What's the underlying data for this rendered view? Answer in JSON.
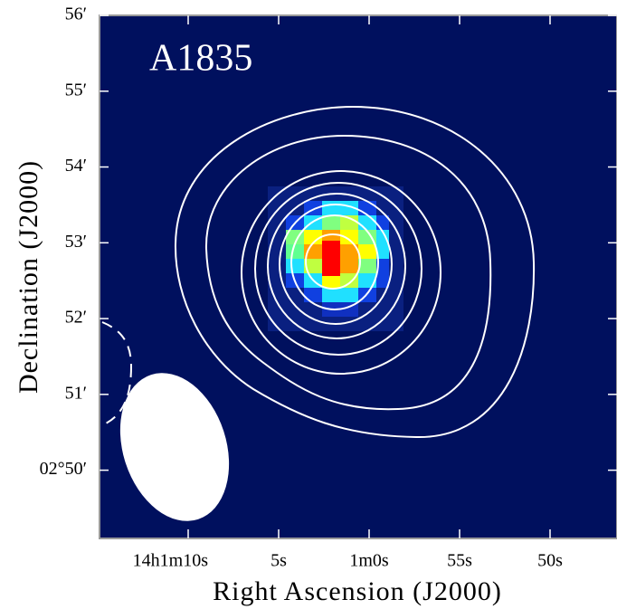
{
  "chart_data": {
    "type": "image",
    "title": "A1835",
    "x_label": "Right Ascension (J2000)",
    "y_label": "Declination (J2000)",
    "xlim": [
      14.9,
      -13.7
    ],
    "ylim": [
      49.1,
      56
    ],
    "xticks": [
      {
        "value": 10,
        "label": "14h1m10s"
      },
      {
        "value": 5,
        "label": "5s"
      },
      {
        "value": 0,
        "label": "1m0s"
      },
      {
        "value": -5,
        "label": "55s"
      },
      {
        "value": -10,
        "label": "50s"
      }
    ],
    "yticks": [
      {
        "value": 56,
        "label": "56′"
      },
      {
        "value": 55,
        "label": "55′"
      },
      {
        "value": 54,
        "label": "54′"
      },
      {
        "value": 53,
        "label": "53′"
      },
      {
        "value": 52,
        "label": "52′"
      },
      {
        "value": 51,
        "label": "51′"
      },
      {
        "value": 50,
        "label": "02°50′"
      }
    ]
  }
}
